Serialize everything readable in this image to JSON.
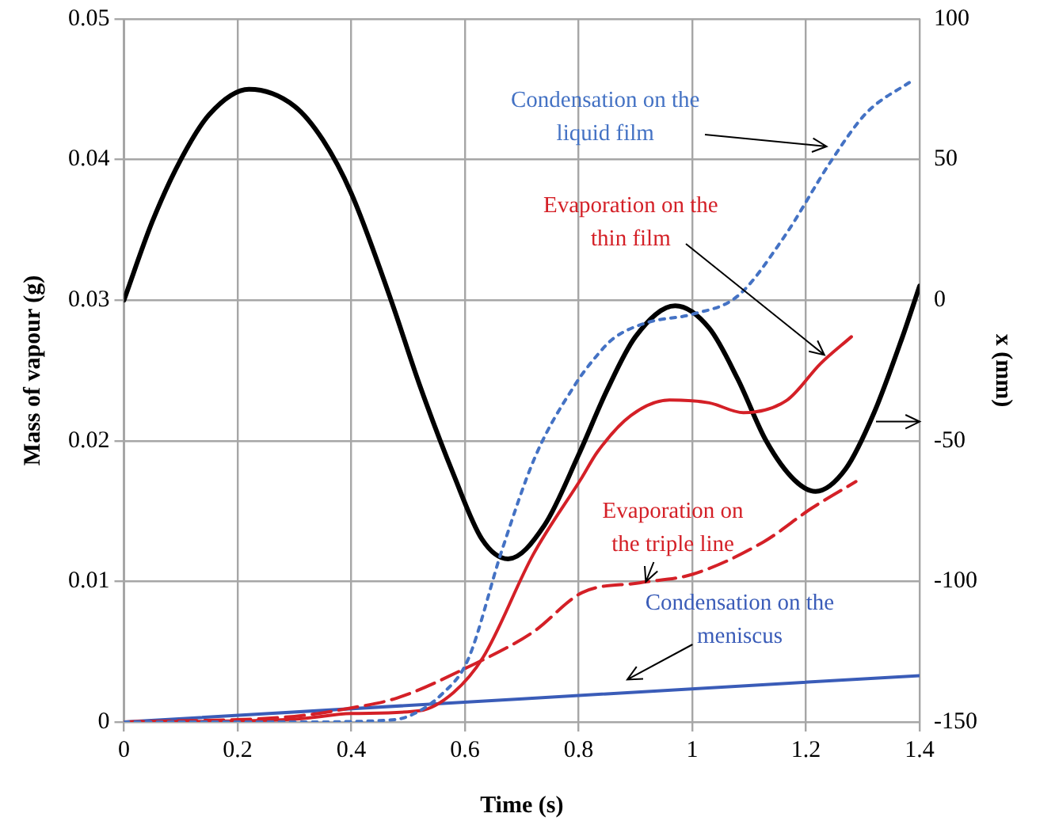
{
  "chart_data": {
    "type": "line",
    "xlabel": "Time (s)",
    "ylabel": "Mass of vapour (g)",
    "y2label": "x (mm)",
    "xlim": [
      0,
      1.4
    ],
    "xticks": [
      0,
      0.2,
      0.4,
      0.6,
      0.8,
      1,
      1.2,
      1.4
    ],
    "ylim": [
      0,
      0.05
    ],
    "yticks": [
      0,
      0.01,
      0.02,
      0.03,
      0.04,
      0.05
    ],
    "y2lim": [
      -150,
      100
    ],
    "y2ticks": [
      -150,
      -100,
      -50,
      0,
      50,
      100
    ],
    "grid": true,
    "legend": false,
    "marker": "none",
    "series": [
      {
        "name": "Condensation on the liquid film",
        "color": "#4472c4",
        "line_style": "dotted",
        "x": [
          0,
          0.3,
          0.45,
          0.5,
          0.56,
          0.605,
          0.665,
          0.724,
          0.794,
          0.833,
          0.862,
          0.92,
          1.0,
          1.08,
          1.16,
          1.246,
          1.306,
          1.39
        ],
        "values": [
          0,
          0,
          0.0001,
          0.0004,
          0.002,
          0.0044,
          0.0122,
          0.0189,
          0.024,
          0.0261,
          0.0273,
          0.0284,
          0.029,
          0.0303,
          0.0344,
          0.04,
          0.0433,
          0.0457
        ]
      },
      {
        "name": "Evaporation on the thin film",
        "color": "#d42027",
        "line_style": "solid",
        "x": [
          0,
          0.3,
          0.4,
          0.52,
          0.58,
          0.632,
          0.72,
          0.806,
          0.833,
          0.892,
          0.96,
          1.03,
          1.09,
          1.167,
          1.226,
          1.28
        ],
        "values": [
          0,
          0.0002,
          0.0006,
          0.0008,
          0.0021,
          0.0046,
          0.0119,
          0.0174,
          0.0192,
          0.0218,
          0.0229,
          0.0227,
          0.022,
          0.0229,
          0.0255,
          0.0274
        ]
      },
      {
        "name": "Evaporation on the triple line",
        "color": "#d42027",
        "line_style": "dashed",
        "x": [
          0,
          0.3,
          0.4,
          0.48,
          0.605,
          0.72,
          0.806,
          0.907,
          1.0,
          1.125,
          1.21,
          1.288
        ],
        "values": [
          0,
          0.0004,
          0.001,
          0.0017,
          0.0039,
          0.0064,
          0.0092,
          0.0099,
          0.0105,
          0.0128,
          0.0152,
          0.0171
        ]
      },
      {
        "name": "Condensation on the meniscus",
        "color": "#3a5cb8",
        "line_style": "solid",
        "x": [
          0,
          1.4
        ],
        "values": [
          0,
          0.0033
        ]
      },
      {
        "color": "#000000",
        "line_style": "solid",
        "axis": "y2",
        "x": [
          0,
          0.05,
          0.1,
          0.15,
          0.22,
          0.3,
          0.35,
          0.4,
          0.47,
          0.52,
          0.58,
          0.63,
          0.676,
          0.74,
          0.8,
          0.85,
          0.9,
          0.97,
          1.03,
          1.08,
          1.13,
          1.18,
          1.217,
          1.27,
          1.32,
          1.37,
          1.4
        ],
        "values": [
          0,
          28,
          50,
          66,
          75,
          69,
          57,
          38,
          0,
          -30,
          -62,
          -85,
          -92,
          -80,
          -55,
          -32,
          -13,
          -2,
          -10,
          -28,
          -50,
          -64,
          -68,
          -60,
          -40,
          -13,
          5
        ]
      }
    ]
  }
}
